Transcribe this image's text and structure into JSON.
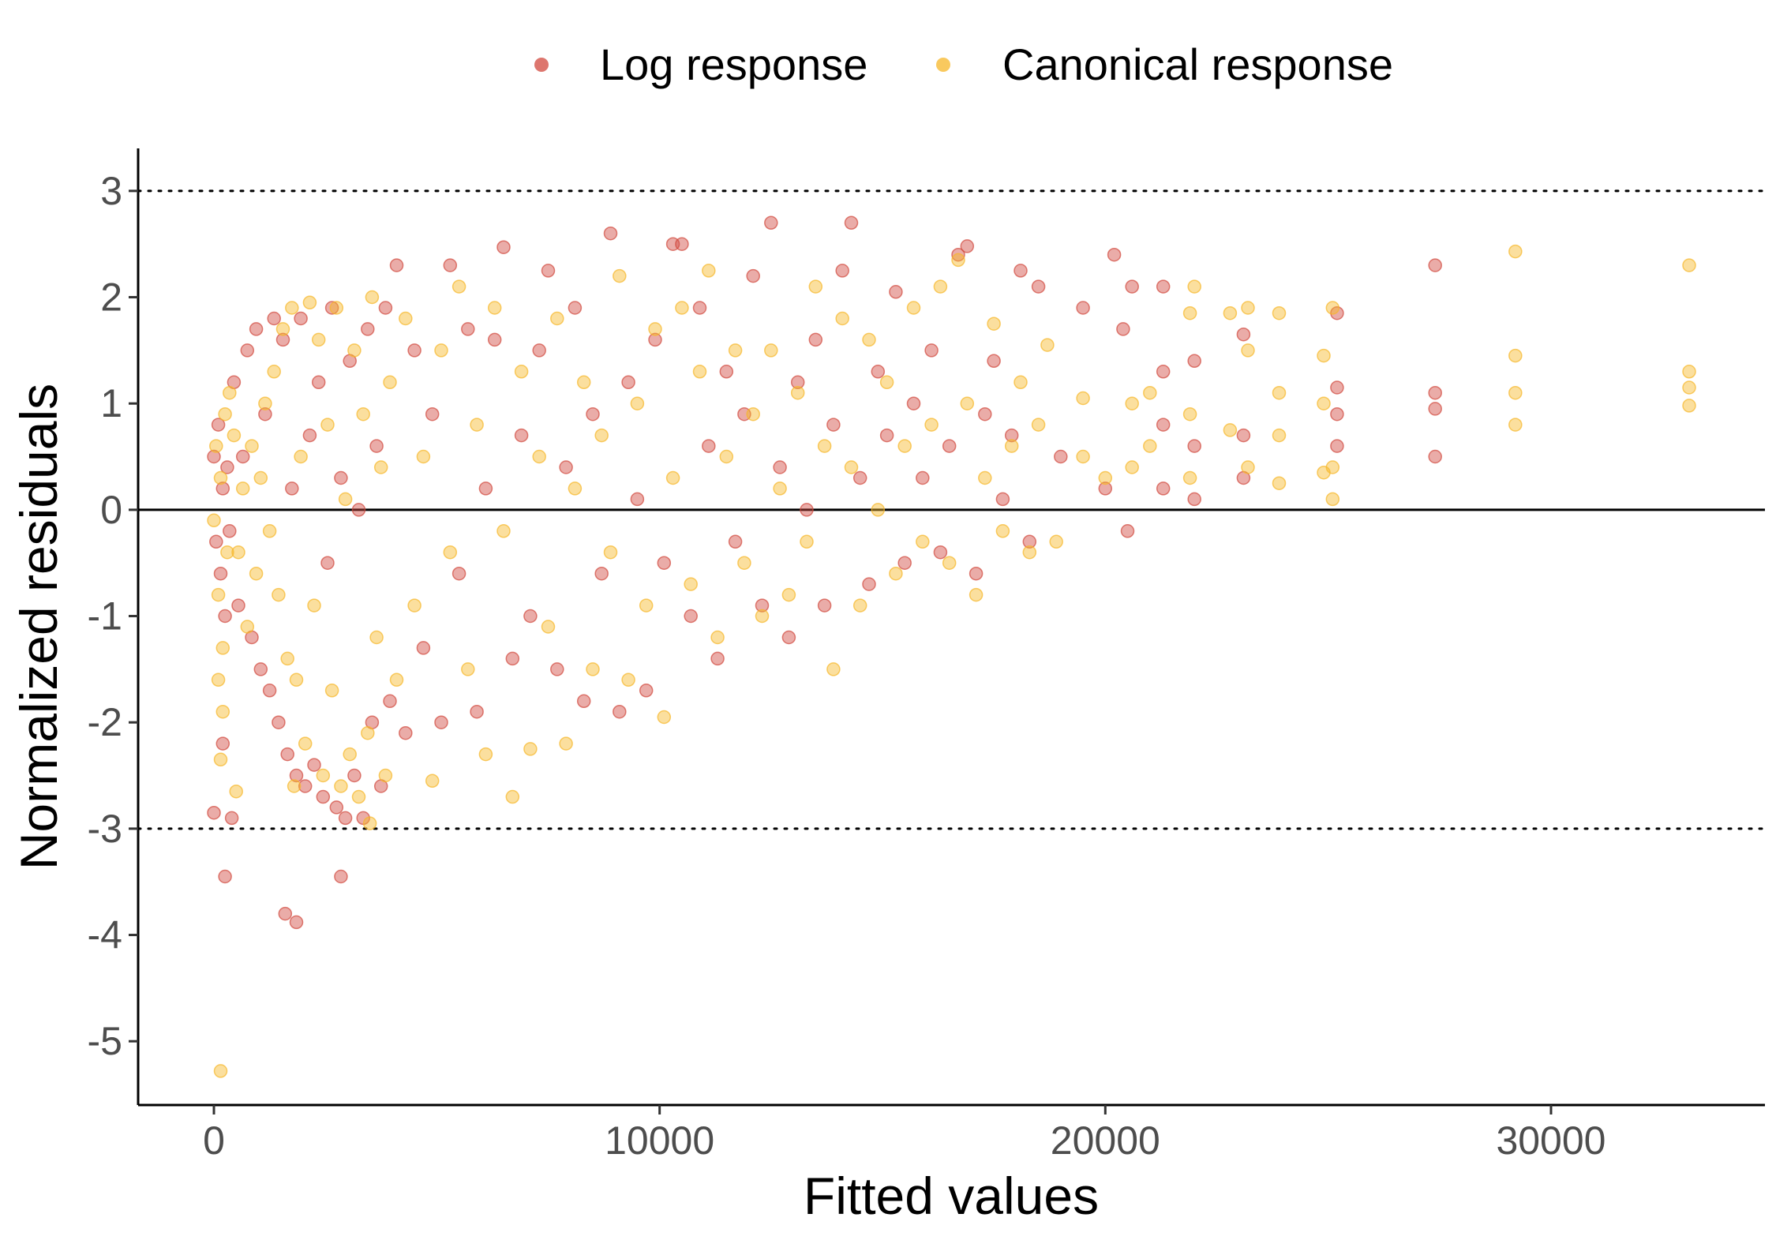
{
  "chart_data": {
    "type": "scatter",
    "xlabel": "Fitted values",
    "ylabel": "Normalized residuals",
    "xlim": [
      -1700,
      34800
    ],
    "ylim": [
      -5.6,
      3.4
    ],
    "x_ticks": [
      0,
      10000,
      20000,
      30000
    ],
    "x_tick_labels": [
      "0",
      "10000",
      "20000",
      "30000"
    ],
    "y_ticks": [
      3,
      2,
      1,
      0,
      -1,
      -2,
      -3,
      -4,
      -5
    ],
    "y_tick_labels": [
      "3",
      "2",
      "1",
      "0",
      "-1",
      "-2",
      "-3",
      "-4",
      "-5"
    ],
    "reference_lines": [
      {
        "y": 3,
        "style": "dotted"
      },
      {
        "y": 0,
        "style": "solid"
      },
      {
        "y": -3,
        "style": "dotted"
      }
    ],
    "grid": false,
    "legend_position": "top",
    "series": [
      {
        "name": "Log response",
        "color": "#d1483d",
        "points": [
          [
            0,
            0.5
          ],
          [
            50,
            -0.3
          ],
          [
            100,
            0.8
          ],
          [
            150,
            -0.6
          ],
          [
            200,
            0.2
          ],
          [
            250,
            -1.0
          ],
          [
            300,
            0.4
          ],
          [
            350,
            -0.2
          ],
          [
            0,
            -2.85
          ],
          [
            200,
            -2.2
          ],
          [
            400,
            -2.9
          ],
          [
            250,
            -3.45
          ],
          [
            1600,
            -3.8
          ],
          [
            1850,
            -3.88
          ],
          [
            2850,
            -3.45
          ],
          [
            450,
            1.2
          ],
          [
            550,
            -0.9
          ],
          [
            650,
            0.5
          ],
          [
            750,
            1.5
          ],
          [
            850,
            -1.2
          ],
          [
            950,
            1.7
          ],
          [
            1050,
            -1.5
          ],
          [
            1150,
            0.9
          ],
          [
            1250,
            -1.7
          ],
          [
            1350,
            1.8
          ],
          [
            1450,
            -2.0
          ],
          [
            1550,
            1.6
          ],
          [
            1650,
            -2.3
          ],
          [
            1750,
            0.2
          ],
          [
            1850,
            -2.5
          ],
          [
            1950,
            1.8
          ],
          [
            2050,
            -2.6
          ],
          [
            2150,
            0.7
          ],
          [
            2250,
            -2.4
          ],
          [
            2350,
            1.2
          ],
          [
            2450,
            -2.7
          ],
          [
            2550,
            -0.5
          ],
          [
            2650,
            1.9
          ],
          [
            2750,
            -2.8
          ],
          [
            2850,
            0.3
          ],
          [
            2950,
            -2.9
          ],
          [
            3050,
            1.4
          ],
          [
            3150,
            -2.5
          ],
          [
            3250,
            0.0
          ],
          [
            3350,
            -2.9
          ],
          [
            3450,
            1.7
          ],
          [
            3550,
            -2.0
          ],
          [
            3650,
            0.6
          ],
          [
            3750,
            -2.6
          ],
          [
            3850,
            1.9
          ],
          [
            3950,
            -1.8
          ],
          [
            4100,
            2.3
          ],
          [
            4300,
            -2.1
          ],
          [
            4500,
            1.5
          ],
          [
            4700,
            -1.3
          ],
          [
            4900,
            0.9
          ],
          [
            5100,
            -2.0
          ],
          [
            5300,
            2.3
          ],
          [
            5500,
            -0.6
          ],
          [
            5700,
            1.7
          ],
          [
            5900,
            -1.9
          ],
          [
            6100,
            0.2
          ],
          [
            6300,
            1.6
          ],
          [
            6500,
            2.47
          ],
          [
            6700,
            -1.4
          ],
          [
            6900,
            0.7
          ],
          [
            7100,
            -1.0
          ],
          [
            7300,
            1.5
          ],
          [
            7500,
            2.25
          ],
          [
            7700,
            -1.5
          ],
          [
            7900,
            0.4
          ],
          [
            8100,
            1.9
          ],
          [
            8300,
            -1.8
          ],
          [
            8500,
            0.9
          ],
          [
            8700,
            -0.6
          ],
          [
            8900,
            2.6
          ],
          [
            9100,
            -1.9
          ],
          [
            9300,
            1.2
          ],
          [
            9500,
            0.1
          ],
          [
            9700,
            -1.7
          ],
          [
            9900,
            1.6
          ],
          [
            10100,
            -0.5
          ],
          [
            10300,
            2.5
          ],
          [
            10500,
            2.5
          ],
          [
            10700,
            -1.0
          ],
          [
            10900,
            1.9
          ],
          [
            11100,
            0.6
          ],
          [
            11300,
            -1.4
          ],
          [
            11500,
            1.3
          ],
          [
            11700,
            -0.3
          ],
          [
            11900,
            0.9
          ],
          [
            12100,
            2.2
          ],
          [
            12300,
            -0.9
          ],
          [
            12500,
            2.7
          ],
          [
            12700,
            0.4
          ],
          [
            12900,
            -1.2
          ],
          [
            13100,
            1.2
          ],
          [
            13300,
            0.0
          ],
          [
            13500,
            1.6
          ],
          [
            13700,
            -0.9
          ],
          [
            13900,
            0.8
          ],
          [
            14100,
            2.25
          ],
          [
            14300,
            2.7
          ],
          [
            14500,
            0.3
          ],
          [
            14700,
            -0.7
          ],
          [
            14900,
            1.3
          ],
          [
            15100,
            0.7
          ],
          [
            15300,
            2.05
          ],
          [
            15500,
            -0.5
          ],
          [
            15700,
            1.0
          ],
          [
            15900,
            0.3
          ],
          [
            16100,
            1.5
          ],
          [
            16300,
            -0.4
          ],
          [
            16500,
            0.6
          ],
          [
            16700,
            2.4
          ],
          [
            16900,
            2.48
          ],
          [
            17100,
            -0.6
          ],
          [
            17300,
            0.9
          ],
          [
            17500,
            1.4
          ],
          [
            17700,
            0.1
          ],
          [
            17900,
            0.7
          ],
          [
            18100,
            2.25
          ],
          [
            18300,
            -0.3
          ],
          [
            18500,
            2.1
          ],
          [
            19000,
            0.5
          ],
          [
            19500,
            1.9
          ],
          [
            20000,
            0.2
          ],
          [
            20200,
            2.4
          ],
          [
            20400,
            1.7
          ],
          [
            20600,
            2.1
          ],
          [
            20500,
            -0.2
          ],
          [
            21300,
            2.1
          ],
          [
            21300,
            1.3
          ],
          [
            21300,
            0.8
          ],
          [
            21300,
            0.2
          ],
          [
            22000,
            1.4
          ],
          [
            22000,
            0.6
          ],
          [
            22000,
            0.1
          ],
          [
            23100,
            1.65
          ],
          [
            23100,
            0.7
          ],
          [
            23100,
            0.3
          ],
          [
            25200,
            1.85
          ],
          [
            25200,
            1.15
          ],
          [
            25200,
            0.9
          ],
          [
            25200,
            0.6
          ],
          [
            27400,
            2.3
          ],
          [
            27400,
            1.1
          ],
          [
            27400,
            0.95
          ],
          [
            27400,
            0.5
          ]
        ]
      },
      {
        "name": "Canonical response",
        "color": "#f7b728",
        "points": [
          [
            0,
            -0.1
          ],
          [
            50,
            0.6
          ],
          [
            100,
            -0.8
          ],
          [
            150,
            0.3
          ],
          [
            200,
            -1.3
          ],
          [
            250,
            0.9
          ],
          [
            300,
            -0.4
          ],
          [
            350,
            1.1
          ],
          [
            100,
            -1.6
          ],
          [
            150,
            -2.35
          ],
          [
            200,
            -1.9
          ],
          [
            500,
            -2.65
          ],
          [
            1800,
            -2.6
          ],
          [
            3500,
            -2.95
          ],
          [
            150,
            -5.28
          ],
          [
            450,
            0.7
          ],
          [
            550,
            -0.4
          ],
          [
            650,
            0.2
          ],
          [
            750,
            -1.1
          ],
          [
            850,
            0.6
          ],
          [
            950,
            -0.6
          ],
          [
            1050,
            0.3
          ],
          [
            1150,
            1.0
          ],
          [
            1250,
            -0.2
          ],
          [
            1350,
            1.3
          ],
          [
            1450,
            -0.8
          ],
          [
            1550,
            1.7
          ],
          [
            1650,
            -1.4
          ],
          [
            1750,
            1.9
          ],
          [
            1850,
            -1.6
          ],
          [
            1950,
            0.5
          ],
          [
            2050,
            -2.2
          ],
          [
            2150,
            1.95
          ],
          [
            2250,
            -0.9
          ],
          [
            2350,
            1.6
          ],
          [
            2450,
            -2.5
          ],
          [
            2550,
            0.8
          ],
          [
            2650,
            -1.7
          ],
          [
            2750,
            1.9
          ],
          [
            2850,
            -2.6
          ],
          [
            2950,
            0.1
          ],
          [
            3050,
            -2.3
          ],
          [
            3150,
            1.5
          ],
          [
            3250,
            -2.7
          ],
          [
            3350,
            0.9
          ],
          [
            3450,
            -2.1
          ],
          [
            3550,
            2.0
          ],
          [
            3650,
            -1.2
          ],
          [
            3750,
            0.4
          ],
          [
            3850,
            -2.5
          ],
          [
            3950,
            1.2
          ],
          [
            4100,
            -1.6
          ],
          [
            4300,
            1.8
          ],
          [
            4500,
            -0.9
          ],
          [
            4700,
            0.5
          ],
          [
            4900,
            -2.55
          ],
          [
            5100,
            1.5
          ],
          [
            5300,
            -0.4
          ],
          [
            5500,
            2.1
          ],
          [
            5700,
            -1.5
          ],
          [
            5900,
            0.8
          ],
          [
            6100,
            -2.3
          ],
          [
            6300,
            1.9
          ],
          [
            6500,
            -0.2
          ],
          [
            6700,
            -2.7
          ],
          [
            6900,
            1.3
          ],
          [
            7100,
            -2.25
          ],
          [
            7300,
            0.5
          ],
          [
            7500,
            -1.1
          ],
          [
            7700,
            1.8
          ],
          [
            7900,
            -2.2
          ],
          [
            8100,
            0.2
          ],
          [
            8300,
            1.2
          ],
          [
            8500,
            -1.5
          ],
          [
            8700,
            0.7
          ],
          [
            8900,
            -0.4
          ],
          [
            9100,
            2.2
          ],
          [
            9300,
            -1.6
          ],
          [
            9500,
            1.0
          ],
          [
            9700,
            -0.9
          ],
          [
            9900,
            1.7
          ],
          [
            10100,
            -1.95
          ],
          [
            10300,
            0.3
          ],
          [
            10500,
            1.9
          ],
          [
            10700,
            -0.7
          ],
          [
            10900,
            1.3
          ],
          [
            11100,
            2.25
          ],
          [
            11300,
            -1.2
          ],
          [
            11500,
            0.5
          ],
          [
            11700,
            1.5
          ],
          [
            11900,
            -0.5
          ],
          [
            12100,
            0.9
          ],
          [
            12300,
            -1.0
          ],
          [
            12500,
            1.5
          ],
          [
            12700,
            0.2
          ],
          [
            12900,
            -0.8
          ],
          [
            13100,
            1.1
          ],
          [
            13300,
            -0.3
          ],
          [
            13500,
            2.1
          ],
          [
            13700,
            0.6
          ],
          [
            13900,
            -1.5
          ],
          [
            14100,
            1.8
          ],
          [
            14300,
            0.4
          ],
          [
            14500,
            -0.9
          ],
          [
            14700,
            1.6
          ],
          [
            14900,
            0.0
          ],
          [
            15100,
            1.2
          ],
          [
            15300,
            -0.6
          ],
          [
            15500,
            0.6
          ],
          [
            15700,
            1.9
          ],
          [
            15900,
            -0.3
          ],
          [
            16100,
            0.8
          ],
          [
            16300,
            2.1
          ],
          [
            16500,
            -0.5
          ],
          [
            16700,
            2.35
          ],
          [
            16900,
            1.0
          ],
          [
            17100,
            -0.8
          ],
          [
            17300,
            0.3
          ],
          [
            17500,
            1.75
          ],
          [
            17700,
            -0.2
          ],
          [
            17900,
            0.6
          ],
          [
            18100,
            1.2
          ],
          [
            18300,
            -0.4
          ],
          [
            18500,
            0.8
          ],
          [
            18700,
            1.55
          ],
          [
            18900,
            -0.3
          ],
          [
            19500,
            0.5
          ],
          [
            19500,
            1.05
          ],
          [
            20000,
            0.3
          ],
          [
            20600,
            1.0
          ],
          [
            20600,
            0.4
          ],
          [
            21000,
            1.1
          ],
          [
            21000,
            0.6
          ],
          [
            21900,
            1.85
          ],
          [
            21900,
            0.9
          ],
          [
            21900,
            0.3
          ],
          [
            22000,
            2.1
          ],
          [
            22800,
            1.85
          ],
          [
            22800,
            0.75
          ],
          [
            23200,
            1.9
          ],
          [
            23200,
            1.5
          ],
          [
            23200,
            0.4
          ],
          [
            23900,
            1.85
          ],
          [
            23900,
            1.1
          ],
          [
            23900,
            0.7
          ],
          [
            23900,
            0.25
          ],
          [
            24900,
            1.45
          ],
          [
            24900,
            1.0
          ],
          [
            24900,
            0.35
          ],
          [
            25100,
            1.9
          ],
          [
            25100,
            0.4
          ],
          [
            25100,
            0.1
          ],
          [
            29200,
            2.43
          ],
          [
            29200,
            1.45
          ],
          [
            29200,
            1.1
          ],
          [
            29200,
            0.8
          ],
          [
            33100,
            2.3
          ],
          [
            33100,
            1.3
          ],
          [
            33100,
            1.15
          ],
          [
            33100,
            0.98
          ]
        ]
      }
    ]
  }
}
